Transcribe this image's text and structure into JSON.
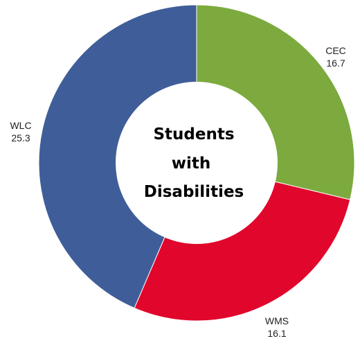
{
  "chart_data": {
    "type": "pie",
    "title_lines": [
      "Students",
      "with",
      "Disabilities"
    ],
    "donut": true,
    "start_angle_deg": 0,
    "direction": "clockwise",
    "slices": [
      {
        "label": "CEC",
        "value": 16.7,
        "value_text": "16.7",
        "color": "#7caa3e"
      },
      {
        "label": "WMS",
        "value": 16.1,
        "value_text": "16.1",
        "color": "#e1062c"
      },
      {
        "label": "WLC",
        "value": 25.3,
        "value_text": "25.3",
        "color": "#3f5e99"
      }
    ]
  }
}
